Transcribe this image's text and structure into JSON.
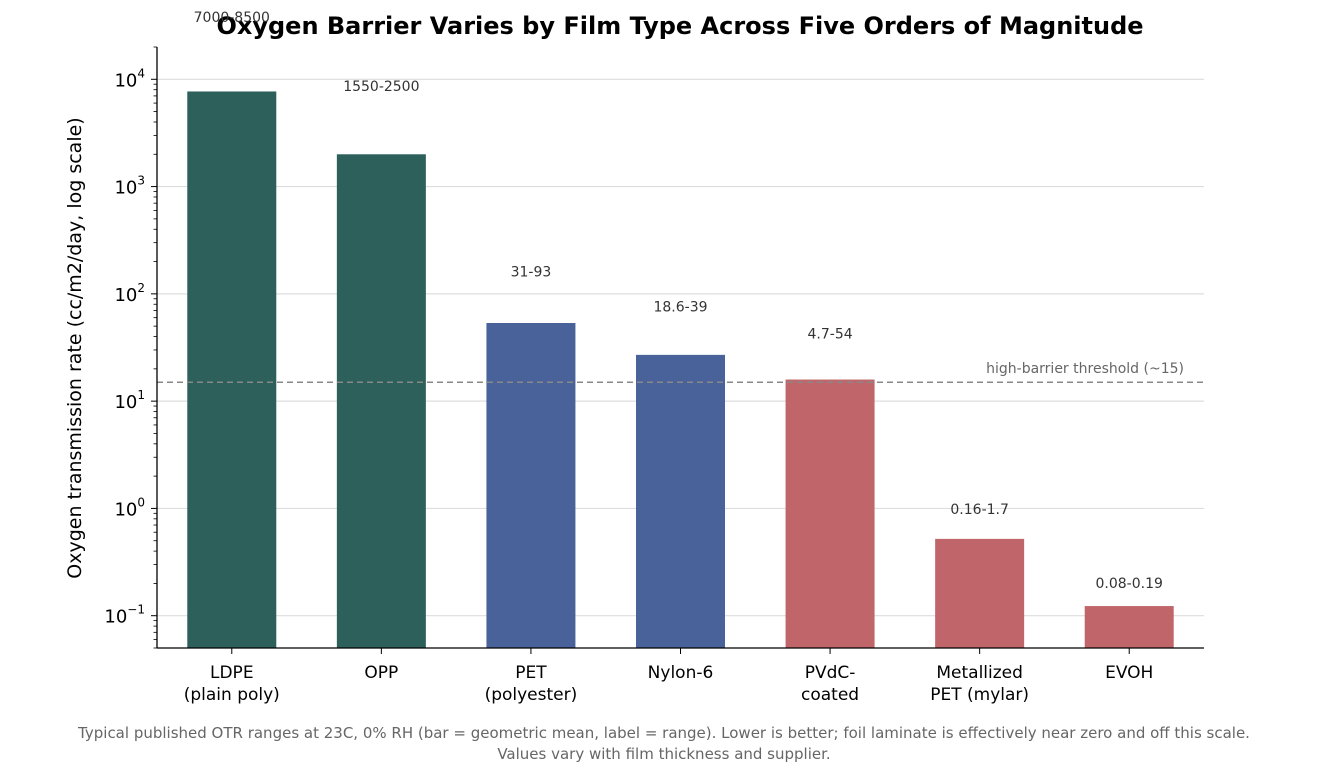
{
  "chart_data": {
    "type": "bar",
    "title": "Oxygen Barrier Varies by Film Type Across Five Orders of Magnitude",
    "ylabel": "Oxygen transmission rate (cc/m2/day, log scale)",
    "xlabel": "",
    "yscale": "log",
    "ylim": [
      0.05,
      20000
    ],
    "yticks": [
      {
        "value": 0.1,
        "base": "10",
        "exp": "−1"
      },
      {
        "value": 1,
        "base": "10",
        "exp": "0"
      },
      {
        "value": 10,
        "base": "10",
        "exp": "1"
      },
      {
        "value": 100,
        "base": "10",
        "exp": "2"
      },
      {
        "value": 1000,
        "base": "10",
        "exp": "3"
      },
      {
        "value": 10000,
        "base": "10",
        "exp": "4"
      }
    ],
    "grid": "horizontal",
    "categories": [
      [
        "LDPE",
        "(plain poly)"
      ],
      [
        "OPP"
      ],
      [
        "PET",
        "(polyester)"
      ],
      [
        "Nylon-6"
      ],
      [
        "PVdC-",
        "coated"
      ],
      [
        "Metallized",
        "PET (mylar)"
      ],
      [
        "EVOH"
      ]
    ],
    "values": [
      7700,
      2000,
      53.5,
      27,
      15.9,
      0.52,
      0.123
    ],
    "range_labels": [
      "7000-8500",
      "1550-2500",
      "31-93",
      "18.6-39",
      "4.7-54",
      "0.16-1.7",
      "0.08-0.19"
    ],
    "colors": [
      "#2e605b",
      "#2e605b",
      "#49639a",
      "#49639a",
      "#c0666a",
      "#c0666a",
      "#c0666a"
    ],
    "threshold": {
      "value": 15,
      "label": "high-barrier threshold (~15)",
      "color": "#888888"
    }
  },
  "caption": {
    "line1": "Typical published OTR ranges at 23C, 0% RH (bar = geometric mean, label = range). Lower is better; foil laminate is effectively near zero and off this scale.",
    "line2": "Values vary with film thickness and supplier."
  }
}
